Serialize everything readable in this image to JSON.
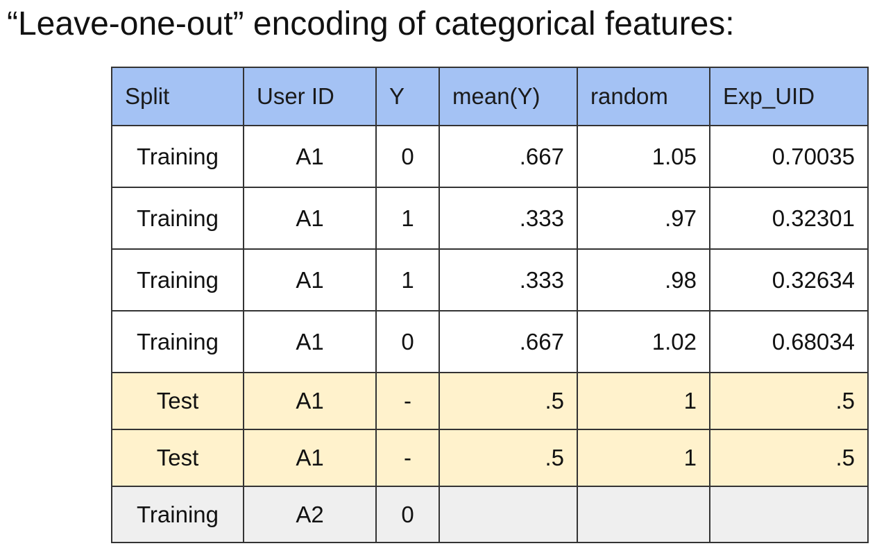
{
  "title": "“Leave-one-out” encoding of categorical features:",
  "table": {
    "headers": [
      "Split",
      "User ID",
      "Y",
      "mean(Y)",
      "random",
      "Exp_UID"
    ],
    "rows": [
      {
        "split": "Training",
        "user_id": "A1",
        "y": "0",
        "mean_y": ".667",
        "random": "1.05",
        "exp_uid": "0.70035"
      },
      {
        "split": "Training",
        "user_id": "A1",
        "y": "1",
        "mean_y": ".333",
        "random": ".97",
        "exp_uid": "0.32301"
      },
      {
        "split": "Training",
        "user_id": "A1",
        "y": "1",
        "mean_y": ".333",
        "random": ".98",
        "exp_uid": "0.32634"
      },
      {
        "split": "Training",
        "user_id": "A1",
        "y": "0",
        "mean_y": ".667",
        "random": "1.02",
        "exp_uid": "0.68034"
      },
      {
        "split": "Test",
        "user_id": "A1",
        "y": "-",
        "mean_y": ".5",
        "random": "1",
        "exp_uid": ".5"
      },
      {
        "split": "Test",
        "user_id": "A1",
        "y": "-",
        "mean_y": ".5",
        "random": "1",
        "exp_uid": ".5"
      },
      {
        "split": "Training",
        "user_id": "A2",
        "y": "0",
        "mean_y": "",
        "random": "",
        "exp_uid": ""
      }
    ]
  },
  "colors": {
    "header_bg": "#a4c2f4",
    "training_row_bg": "#ffffff",
    "test_row_bg": "#fff2cc",
    "other_user_row_bg": "#efefef",
    "border": "#333333"
  }
}
